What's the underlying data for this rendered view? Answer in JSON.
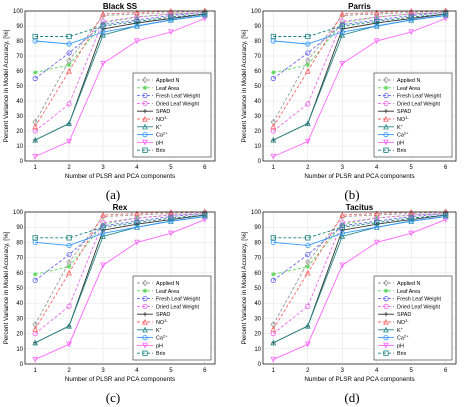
{
  "figure": {
    "panel_labels": [
      "(a)",
      "(b)",
      "(c)",
      "(d)"
    ]
  },
  "colors": {
    "Applied N": "#999999",
    "Leaf Area": "#5cd65c",
    "Fresh Leaf Weight": "#6666ee",
    "Dried Leaf Weight": "#ee66ee",
    "SPAD": "#333333",
    "NO3-": "#ff6666",
    "K+": "#2a8a8a",
    "Ca2+": "#3399ff",
    "pH": "#ff66ff",
    "Brix": "#1a8080"
  },
  "chart_data": [
    {
      "type": "line",
      "title": "Black SS",
      "xlabel": "Number of PLSR and PCA components",
      "ylabel": "Percent Variance in Model Accuracy, [%]",
      "x": [
        1,
        2,
        3,
        4,
        5,
        6
      ],
      "xlim": [
        0.7,
        6.3
      ],
      "ylim": [
        0,
        100
      ],
      "yticks": [
        0,
        10,
        20,
        30,
        40,
        50,
        60,
        70,
        80,
        90,
        100
      ],
      "grid": true,
      "legend_position": "lower-right",
      "series": [
        {
          "name": "Applied N",
          "values": [
            26,
            67,
            97,
            98,
            99,
            100
          ]
        },
        {
          "name": "Leaf Area",
          "values": [
            59,
            64,
            92,
            96,
            98,
            99
          ]
        },
        {
          "name": "Fresh Leaf Weight",
          "values": [
            55,
            72,
            91,
            94,
            97,
            99
          ]
        },
        {
          "name": "Dried Leaf Weight",
          "values": [
            20,
            38,
            93,
            96,
            98,
            99
          ]
        },
        {
          "name": "SPAD",
          "values": [
            14,
            25,
            88,
            92,
            95,
            98
          ]
        },
        {
          "name": "NO3-",
          "values": [
            23,
            60,
            98,
            99,
            100,
            100
          ]
        },
        {
          "name": "K+",
          "values": [
            14,
            25,
            84,
            90,
            94,
            97
          ]
        },
        {
          "name": "Ca2+",
          "values": [
            80,
            78,
            86,
            90,
            94,
            97
          ]
        },
        {
          "name": "pH",
          "values": [
            3,
            13,
            65,
            80,
            86,
            95
          ]
        },
        {
          "name": "Brix",
          "values": [
            83,
            83,
            90,
            93,
            96,
            98
          ]
        }
      ]
    },
    {
      "type": "line",
      "title": "Parris",
      "xlabel": "Number of PLSR and PCA components",
      "ylabel": "Percent Variance in Model Accuracy, [%]",
      "x": [
        1,
        2,
        3,
        4,
        5,
        6
      ],
      "xlim": [
        0.7,
        6.3
      ],
      "ylim": [
        0,
        100
      ],
      "yticks": [
        0,
        10,
        20,
        30,
        40,
        50,
        60,
        70,
        80,
        90,
        100
      ],
      "grid": true,
      "legend_position": "lower-right",
      "series": [
        {
          "name": "Applied N",
          "values": [
            26,
            67,
            97,
            98,
            99,
            100
          ]
        },
        {
          "name": "Leaf Area",
          "values": [
            59,
            64,
            92,
            96,
            98,
            99
          ]
        },
        {
          "name": "Fresh Leaf Weight",
          "values": [
            55,
            72,
            91,
            94,
            97,
            99
          ]
        },
        {
          "name": "Dried Leaf Weight",
          "values": [
            20,
            38,
            93,
            96,
            98,
            99
          ]
        },
        {
          "name": "SPAD",
          "values": [
            14,
            25,
            88,
            92,
            95,
            98
          ]
        },
        {
          "name": "NO3-",
          "values": [
            23,
            60,
            98,
            99,
            100,
            100
          ]
        },
        {
          "name": "K+",
          "values": [
            14,
            25,
            84,
            90,
            94,
            97
          ]
        },
        {
          "name": "Ca2+",
          "values": [
            80,
            78,
            86,
            90,
            94,
            97
          ]
        },
        {
          "name": "pH",
          "values": [
            3,
            13,
            65,
            80,
            86,
            95
          ]
        },
        {
          "name": "Brix",
          "values": [
            83,
            83,
            90,
            93,
            96,
            98
          ]
        }
      ]
    },
    {
      "type": "line",
      "title": "Rex",
      "xlabel": "Number of PLSR and PCA components",
      "ylabel": "Percent Variance in Model Accuracy, [%]",
      "x": [
        1,
        2,
        3,
        4,
        5,
        6
      ],
      "xlim": [
        0.7,
        6.3
      ],
      "ylim": [
        0,
        100
      ],
      "yticks": [
        0,
        10,
        20,
        30,
        40,
        50,
        60,
        70,
        80,
        90,
        100
      ],
      "grid": true,
      "legend_position": "lower-right",
      "series": [
        {
          "name": "Applied N",
          "values": [
            26,
            67,
            97,
            98,
            99,
            100
          ]
        },
        {
          "name": "Leaf Area",
          "values": [
            59,
            64,
            92,
            96,
            98,
            99
          ]
        },
        {
          "name": "Fresh Leaf Weight",
          "values": [
            55,
            72,
            91,
            94,
            97,
            99
          ]
        },
        {
          "name": "Dried Leaf Weight",
          "values": [
            20,
            38,
            93,
            96,
            98,
            99
          ]
        },
        {
          "name": "SPAD",
          "values": [
            14,
            25,
            88,
            92,
            95,
            98
          ]
        },
        {
          "name": "NO3-",
          "values": [
            23,
            60,
            98,
            99,
            100,
            100
          ]
        },
        {
          "name": "K+",
          "values": [
            14,
            25,
            84,
            90,
            94,
            97
          ]
        },
        {
          "name": "Ca2+",
          "values": [
            80,
            78,
            86,
            90,
            94,
            97
          ]
        },
        {
          "name": "pH",
          "values": [
            3,
            13,
            65,
            80,
            86,
            95
          ]
        },
        {
          "name": "Brix",
          "values": [
            83,
            83,
            90,
            93,
            96,
            98
          ]
        }
      ]
    },
    {
      "type": "line",
      "title": "Tacitus",
      "xlabel": "Number of PLSR and PCA components",
      "ylabel": "Percent Variance in Model Accuracy, [%]",
      "x": [
        1,
        2,
        3,
        4,
        5,
        6
      ],
      "xlim": [
        0.7,
        6.3
      ],
      "ylim": [
        0,
        100
      ],
      "yticks": [
        0,
        10,
        20,
        30,
        40,
        50,
        60,
        70,
        80,
        90,
        100
      ],
      "grid": true,
      "legend_position": "lower-right",
      "series": [
        {
          "name": "Applied N",
          "values": [
            26,
            67,
            97,
            98,
            99,
            100
          ]
        },
        {
          "name": "Leaf Area",
          "values": [
            59,
            64,
            92,
            96,
            98,
            99
          ]
        },
        {
          "name": "Fresh Leaf Weight",
          "values": [
            55,
            72,
            91,
            94,
            97,
            99
          ]
        },
        {
          "name": "Dried Leaf Weight",
          "values": [
            20,
            38,
            93,
            96,
            98,
            99
          ]
        },
        {
          "name": "SPAD",
          "values": [
            14,
            25,
            88,
            92,
            95,
            98
          ]
        },
        {
          "name": "NO3-",
          "values": [
            23,
            60,
            98,
            99,
            100,
            100
          ]
        },
        {
          "name": "K+",
          "values": [
            14,
            25,
            84,
            90,
            94,
            97
          ]
        },
        {
          "name": "Ca2+",
          "values": [
            80,
            78,
            86,
            90,
            94,
            97
          ]
        },
        {
          "name": "pH",
          "values": [
            3,
            13,
            65,
            80,
            86,
            95
          ]
        },
        {
          "name": "Brix",
          "values": [
            83,
            83,
            90,
            93,
            96,
            98
          ]
        }
      ]
    }
  ]
}
